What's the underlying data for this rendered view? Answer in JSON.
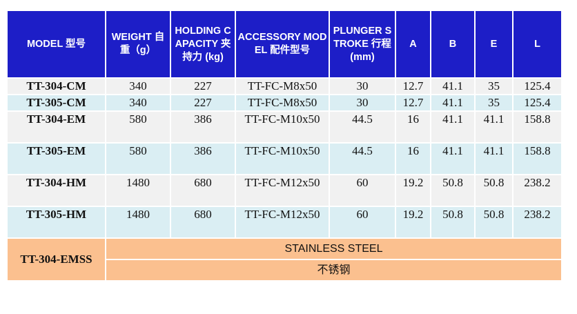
{
  "header": {
    "model": "MODEL 型号",
    "weight": "WEIGHT 自重（g）",
    "holding": "HOLDING CAPACITY 夹持力 (kg)",
    "accessory": "ACCESSORY MODEL 配件型号",
    "plunger": "PLUNGER STROKE 行程(mm)",
    "a": "A",
    "b": "B",
    "e": "E",
    "l": "L"
  },
  "rows": [
    {
      "model": "TT-304-CM",
      "weight": "340",
      "holding": "227",
      "accessory": "TT-FC-M8x50",
      "stroke": "30",
      "a": "12.7",
      "b": "41.1",
      "e": "35",
      "l": "125.4"
    },
    {
      "model": "TT-305-CM",
      "weight": "340",
      "holding": "227",
      "accessory": "TT-FC-M8x50",
      "stroke": "30",
      "a": "12.7",
      "b": "41.1",
      "e": "35",
      "l": "125.4"
    },
    {
      "model": "TT-304-EM",
      "weight": "580",
      "holding": "386",
      "accessory": "TT-FC-M10x50",
      "stroke": "44.5",
      "a": "16",
      "b": "41.1",
      "e": "41.1",
      "l": "158.8"
    },
    {
      "model": "TT-305-EM",
      "weight": "580",
      "holding": "386",
      "accessory": "TT-FC-M10x50",
      "stroke": "44.5",
      "a": "16",
      "b": "41.1",
      "e": "41.1",
      "l": "158.8"
    },
    {
      "model": "TT-304-HM",
      "weight": "1480",
      "holding": "680",
      "accessory": "TT-FC-M12x50",
      "stroke": "60",
      "a": "19.2",
      "b": "50.8",
      "e": "50.8",
      "l": "238.2"
    },
    {
      "model": "TT-305-HM",
      "weight": "1480",
      "holding": "680",
      "accessory": "TT-FC-M12x50",
      "stroke": "60",
      "a": "19.2",
      "b": "50.8",
      "e": "50.8",
      "l": "238.2"
    }
  ],
  "stainless": {
    "model": "TT-304-EMSS",
    "material_en": "STAINLESS STEEL",
    "material_cn": "不锈钢"
  },
  "colors": {
    "header_bg": "#1d1ec7",
    "row_gray": "#f1f1f1",
    "row_blue": "#daeef3",
    "row_orange": "#fbc08f"
  }
}
